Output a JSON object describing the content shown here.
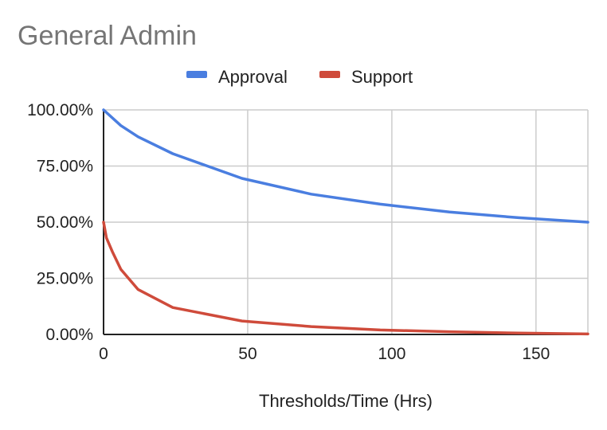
{
  "chart_data": {
    "type": "line",
    "title": "General Admin",
    "xlabel": "Thresholds/Time (Hrs)",
    "ylabel": "",
    "xlim": [
      0,
      168
    ],
    "ylim": [
      0,
      100
    ],
    "x_ticks": [
      0,
      50,
      100,
      150
    ],
    "y_ticks": [
      0,
      25,
      50,
      75,
      100
    ],
    "x_tick_labels": [
      "0",
      "50",
      "100",
      "150"
    ],
    "y_tick_labels": [
      "0.00%",
      "25.00%",
      "50.00%",
      "75.00%",
      "100.00%"
    ],
    "grid": true,
    "legend_position": "top",
    "series": [
      {
        "name": "Approval",
        "color": "#4a7ee0",
        "points": [
          [
            0,
            100
          ],
          [
            6,
            93
          ],
          [
            12,
            88
          ],
          [
            24,
            80.5
          ],
          [
            36,
            75
          ],
          [
            48,
            69.5
          ],
          [
            72,
            62.5
          ],
          [
            96,
            58
          ],
          [
            120,
            54.5
          ],
          [
            144,
            52
          ],
          [
            168,
            50
          ]
        ]
      },
      {
        "name": "Support",
        "color": "#cf4b3b",
        "points": [
          [
            0,
            50
          ],
          [
            1,
            43
          ],
          [
            3,
            37
          ],
          [
            6,
            29
          ],
          [
            12,
            20
          ],
          [
            24,
            12
          ],
          [
            48,
            6
          ],
          [
            72,
            3.5
          ],
          [
            96,
            2
          ],
          [
            120,
            1.2
          ],
          [
            144,
            0.6
          ],
          [
            168,
            0.2
          ]
        ]
      }
    ]
  }
}
